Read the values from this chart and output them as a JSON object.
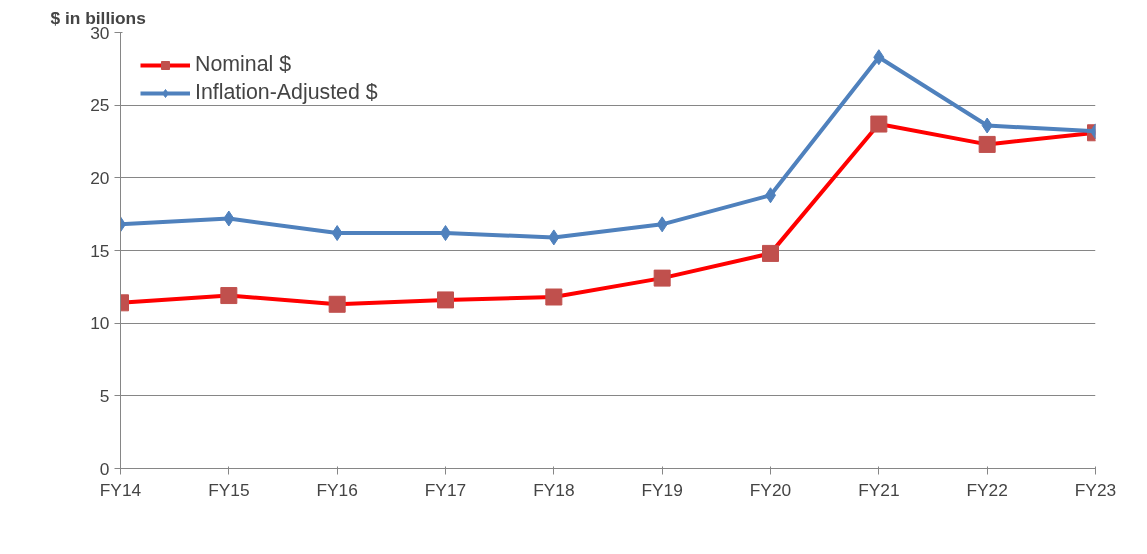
{
  "chart_data": {
    "type": "line",
    "ylabel": "$ in billions",
    "categories": [
      "FY14",
      "FY15",
      "FY16",
      "FY17",
      "FY18",
      "FY19",
      "FY20",
      "FY21",
      "FY22",
      "FY23"
    ],
    "series": [
      {
        "name": "Nominal $",
        "color": "#ff0000",
        "marker": "square",
        "values": [
          11.4,
          11.9,
          11.3,
          11.6,
          11.8,
          13.1,
          14.8,
          23.7,
          22.3,
          23.1
        ]
      },
      {
        "name": "Inflation-Adjusted $",
        "color": "#4f81bd",
        "marker": "diamond",
        "values": [
          16.8,
          17.2,
          16.2,
          16.2,
          15.9,
          16.8,
          18.8,
          28.3,
          23.6,
          23.2
        ]
      }
    ],
    "ylim": [
      0,
      30
    ],
    "yticks": [
      0,
      5,
      10,
      15,
      20,
      25,
      30
    ],
    "grid": "y",
    "legend": "top left",
    "line_style": "solid"
  }
}
